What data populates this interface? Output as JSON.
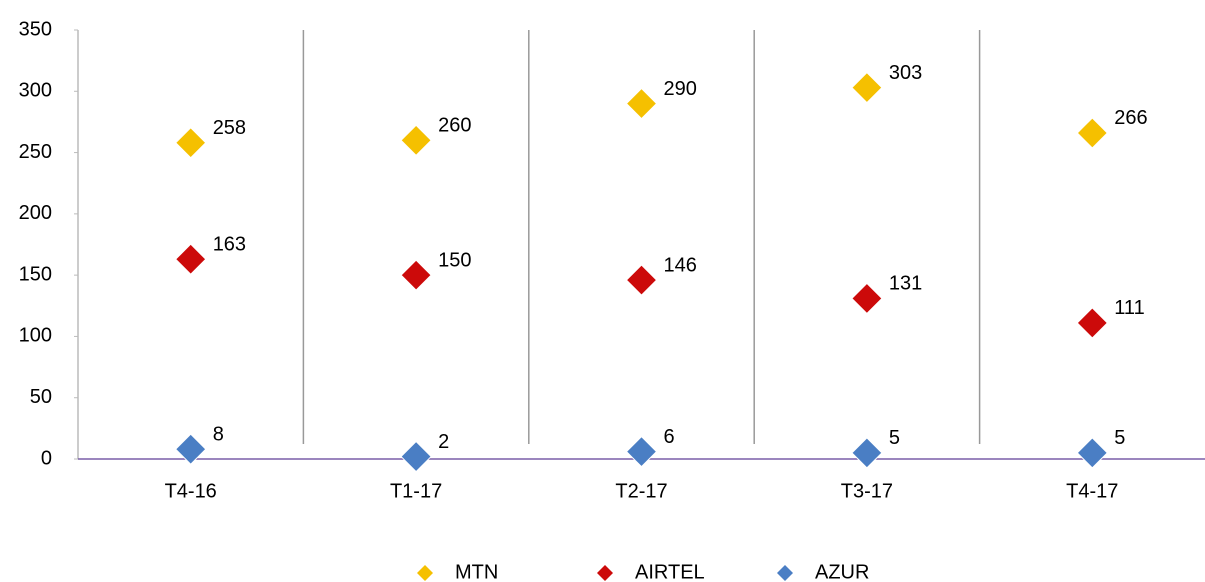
{
  "chart_data": {
    "type": "scatter",
    "categories": [
      "T4-16",
      "T1-17",
      "T2-17",
      "T3-17",
      "T4-17"
    ],
    "series": [
      {
        "name": "MTN",
        "color": "#f5c000",
        "values": [
          258,
          260,
          290,
          303,
          266
        ]
      },
      {
        "name": "AIRTEL",
        "color": "#cc0a0a",
        "values": [
          163,
          150,
          146,
          131,
          111
        ]
      },
      {
        "name": "AZUR",
        "color": "#4a7ec4",
        "values": [
          8,
          2,
          6,
          5,
          5
        ]
      }
    ],
    "ylim": [
      0,
      350
    ],
    "yticks": [
      0,
      50,
      100,
      150,
      200,
      250,
      300,
      350
    ],
    "legend": "bottom"
  }
}
